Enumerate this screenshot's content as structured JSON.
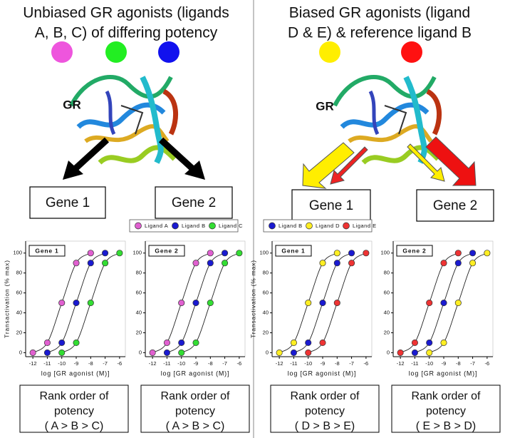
{
  "panels": [
    {
      "title": [
        "Unbiased GR agonists (ligands",
        "A, B, C) of differing potency"
      ],
      "ligand_colors": [
        "#ee55dd",
        "#22ee22",
        "#1111ee"
      ],
      "gr": "GR",
      "genes": [
        "Gene 1",
        "Gene 2"
      ],
      "ranks": [
        [
          "Rank order of",
          "potency",
          "( A > B > C)"
        ],
        [
          "Rank order of",
          "potency",
          "( A > B > C)"
        ]
      ]
    },
    {
      "title": [
        "Biased GR agonists (ligand",
        "D & E) & reference ligand B"
      ],
      "ligand_colors": [
        "#ffee00",
        "#ff1111"
      ],
      "gr": "GR",
      "genes": [
        "Gene 1",
        "Gene 2"
      ],
      "ranks": [
        [
          "Rank order of",
          "potency",
          "( D > B > E)"
        ],
        [
          "Rank order of",
          "potency",
          "( E > B > D)"
        ]
      ]
    }
  ],
  "chart_data": [
    {
      "type": "line",
      "title": "Gene 1",
      "x_label": "log [GR agonist (M)]",
      "y_label": "Transactivation (% max)",
      "xlim": [
        -12.5,
        -5.6
      ],
      "ylim": [
        -4,
        112
      ],
      "xticks": [
        -12,
        -11,
        -10,
        -9,
        -8,
        -7,
        -6
      ],
      "yticks": [
        0,
        20,
        40,
        60,
        80,
        100
      ],
      "series": [
        {
          "name": "Ligand A",
          "color": "#e060d0",
          "x": [
            -12,
            -11,
            -10,
            -9,
            -8
          ],
          "values": [
            0,
            10,
            50,
            90,
            100
          ]
        },
        {
          "name": "Ligand B",
          "color": "#1a1ad0",
          "x": [
            -11,
            -10,
            -9,
            -8,
            -7
          ],
          "values": [
            0,
            10,
            50,
            90,
            100
          ]
        },
        {
          "name": "Ligand C",
          "color": "#33dd33",
          "x": [
            -10,
            -9,
            -8,
            -7,
            -6
          ],
          "values": [
            0,
            10,
            50,
            90,
            100
          ]
        }
      ]
    },
    {
      "type": "line",
      "title": "Gene 2",
      "x_label": "log [GR agonist (M)]",
      "xlim": [
        -12.5,
        -5.6
      ],
      "ylim": [
        -4,
        112
      ],
      "xticks": [
        -12,
        -11,
        -10,
        -9,
        -8,
        -7,
        -6
      ],
      "yticks": [
        0,
        20,
        40,
        60,
        80,
        100
      ],
      "series": [
        {
          "color": "#e060d0",
          "x": [
            -12,
            -11,
            -10,
            -9,
            -8
          ],
          "values": [
            0,
            10,
            50,
            90,
            100
          ]
        },
        {
          "color": "#1a1ad0",
          "x": [
            -11,
            -10,
            -9,
            -8,
            -7
          ],
          "values": [
            0,
            10,
            50,
            90,
            100
          ]
        },
        {
          "color": "#33dd33",
          "x": [
            -10,
            -9,
            -8,
            -7,
            -6
          ],
          "values": [
            0,
            10,
            50,
            90,
            100
          ]
        }
      ]
    },
    {
      "type": "line",
      "title": "Gene 1",
      "x_label": "log [GR agonist (M)]",
      "y_label": "Transactivation (% max)",
      "xlim": [
        -12.5,
        -5.6
      ],
      "ylim": [
        -4,
        112
      ],
      "xticks": [
        -12,
        -11,
        -10,
        -9,
        -8,
        -7,
        -6
      ],
      "yticks": [
        0,
        20,
        40,
        60,
        80,
        100
      ],
      "series": [
        {
          "name": "Ligand B",
          "color": "#1a1ad0",
          "x": [
            -11,
            -10,
            -9,
            -8,
            -7
          ],
          "values": [
            0,
            10,
            50,
            90,
            100
          ]
        },
        {
          "name": "Ligand D",
          "color": "#ffee22",
          "x": [
            -12,
            -11,
            -10,
            -9,
            -8
          ],
          "values": [
            0,
            10,
            50,
            90,
            100
          ]
        },
        {
          "name": "Ligand E",
          "color": "#ee3333",
          "x": [
            -10,
            -9,
            -8,
            -7,
            -6
          ],
          "values": [
            0,
            10,
            50,
            90,
            100
          ]
        }
      ]
    },
    {
      "type": "line",
      "title": "Gene 2",
      "x_label": "log [GR agonist (M)]",
      "xlim": [
        -12.5,
        -5.6
      ],
      "ylim": [
        -4,
        112
      ],
      "xticks": [
        -12,
        -11,
        -10,
        -9,
        -8,
        -7,
        -6
      ],
      "yticks": [
        0,
        20,
        40,
        60,
        80,
        100
      ],
      "series": [
        {
          "color": "#1a1ad0",
          "x": [
            -11,
            -10,
            -9,
            -8,
            -7
          ],
          "values": [
            0,
            10,
            50,
            90,
            100
          ]
        },
        {
          "color": "#ffee22",
          "x": [
            -10,
            -9,
            -8,
            -7,
            -6
          ],
          "values": [
            0,
            10,
            50,
            90,
            100
          ]
        },
        {
          "color": "#ee3333",
          "x": [
            -12,
            -11,
            -10,
            -9,
            -8
          ],
          "values": [
            0,
            10,
            50,
            90,
            100
          ]
        }
      ]
    }
  ]
}
